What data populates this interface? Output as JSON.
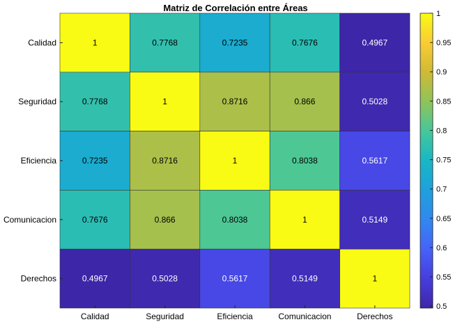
{
  "chart_data": {
    "type": "heatmap",
    "title": "Matriz de Correlación entre Áreas",
    "row_labels": [
      "Calidad",
      "Seguridad",
      "Eficiencia",
      "Comunicacion",
      "Derechos"
    ],
    "col_labels": [
      "Calidad",
      "Seguridad",
      "Eficiencia",
      "Comunicacion",
      "Derechos"
    ],
    "values": [
      [
        1,
        0.7768,
        0.7235,
        0.7676,
        0.4967
      ],
      [
        0.7768,
        1,
        0.8716,
        0.866,
        0.5028
      ],
      [
        0.7235,
        0.8716,
        1,
        0.8038,
        0.5617
      ],
      [
        0.7676,
        0.866,
        0.8038,
        1,
        0.5149
      ],
      [
        0.4967,
        0.5028,
        0.5617,
        0.5149,
        1
      ]
    ],
    "cell_labels": [
      [
        "1",
        "0.7768",
        "0.7235",
        "0.7676",
        "0.4967"
      ],
      [
        "0.7768",
        "1",
        "0.8716",
        "0.866",
        "0.5028"
      ],
      [
        "0.7235",
        "0.8716",
        "1",
        "0.8038",
        "0.5617"
      ],
      [
        "0.7676",
        "0.866",
        "0.8038",
        "1",
        "0.5149"
      ],
      [
        "0.4967",
        "0.5028",
        "0.5617",
        "0.5149",
        "1"
      ]
    ],
    "colorbar": {
      "colormap": "parula",
      "range": [
        0.4967,
        1
      ],
      "ticks": [
        "0.5",
        "0.55",
        "0.6",
        "0.65",
        "0.7",
        "0.75",
        "0.8",
        "0.85",
        "0.9",
        "0.95",
        "1"
      ]
    }
  }
}
